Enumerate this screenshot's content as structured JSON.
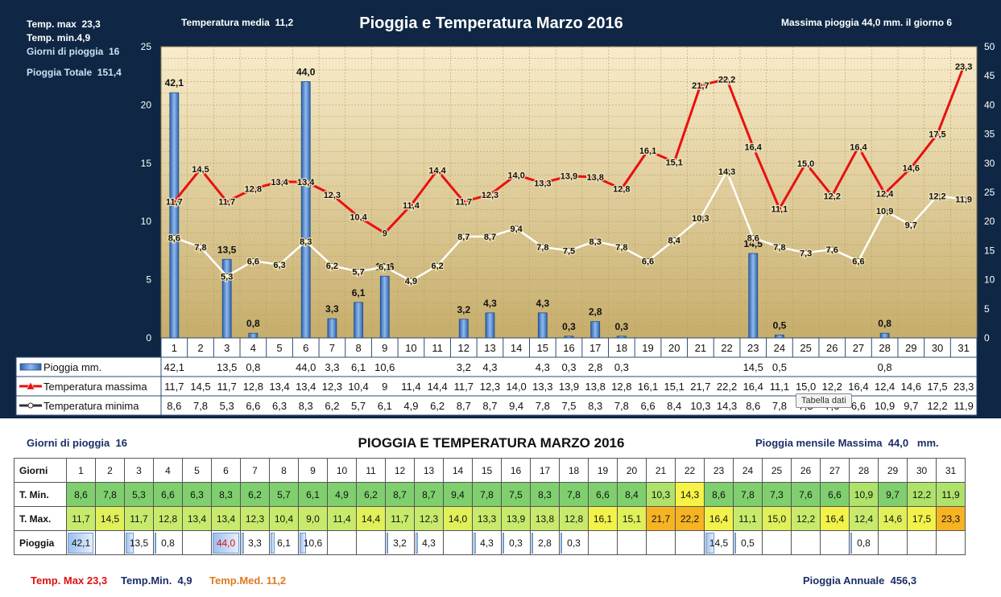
{
  "header": {
    "title": "Pioggia e Temperatura Marzo 2016",
    "temp_max_label": "Temp. max",
    "temp_max_value": "23,3",
    "temp_min_label": "Temp.  min.4,9",
    "rain_days_label": "Giorni di pioggia",
    "rain_days_value": "16",
    "rain_total_label": "Pioggia Totale",
    "rain_total_value": "151,4",
    "temp_media_label": "Temperatura media",
    "temp_media_value": "11,2",
    "max_rain_text": "Massima pioggia 44,0  mm.  il giorno  6"
  },
  "chart_data": {
    "type": "bar+line",
    "x": [
      "1",
      "2",
      "3",
      "4",
      "5",
      "6",
      "7",
      "8",
      "9",
      "10",
      "11",
      "12",
      "13",
      "14",
      "15",
      "16",
      "17",
      "18",
      "19",
      "20",
      "21",
      "22",
      "23",
      "24",
      "25",
      "26",
      "27",
      "28",
      "29",
      "30",
      "31"
    ],
    "series": [
      {
        "name": "Pioggia mm.",
        "type": "bar",
        "axis": "left-scaled",
        "values": [
          42.1,
          null,
          13.5,
          0.8,
          null,
          44.0,
          3.3,
          6.1,
          10.6,
          null,
          null,
          3.2,
          4.3,
          null,
          4.3,
          0.3,
          2.8,
          0.3,
          null,
          null,
          null,
          null,
          14.5,
          0.5,
          null,
          null,
          null,
          0.8,
          null,
          null,
          null
        ],
        "labels": [
          "42,1",
          "",
          "13,5",
          "0,8",
          "",
          "44,0",
          "3,3",
          "6,1",
          "10,6",
          "",
          "",
          "3,2",
          "4,3",
          "",
          "4,3",
          "0,3",
          "2,8",
          "0,3",
          "",
          "",
          "",
          "",
          "14,5",
          "0,5",
          "",
          "",
          "",
          "0,8",
          "",
          "",
          ""
        ]
      },
      {
        "name": "Temperatura massima",
        "type": "line",
        "color": "#e81010",
        "values": [
          11.7,
          14.5,
          11.7,
          12.8,
          13.4,
          13.4,
          12.3,
          10.4,
          9,
          11.4,
          14.4,
          11.7,
          12.3,
          14.0,
          13.3,
          13.9,
          13.8,
          12.8,
          16.1,
          15.1,
          21.7,
          22.2,
          16.4,
          11.1,
          15.0,
          12.2,
          16.4,
          12.4,
          14.6,
          17.5,
          23.3
        ],
        "labels": [
          "11,7",
          "14,5",
          "11,7",
          "12,8",
          "13,4",
          "13,4",
          "12,3",
          "10,4",
          "9",
          "11,4",
          "14,4",
          "11,7",
          "12,3",
          "14,0",
          "13,3",
          "13,9",
          "13,8",
          "12,8",
          "16,1",
          "15,1",
          "21,7",
          "22,2",
          "16,4",
          "11,1",
          "15,0",
          "12,2",
          "16,4",
          "12,4",
          "14,6",
          "17,5",
          "23,3"
        ]
      },
      {
        "name": "Temperatura minima",
        "type": "line",
        "color": "#ffffff",
        "values": [
          8.6,
          7.8,
          5.3,
          6.6,
          6.3,
          8.3,
          6.2,
          5.7,
          6.1,
          4.9,
          6.2,
          8.7,
          8.7,
          9.4,
          7.8,
          7.5,
          8.3,
          7.8,
          6.6,
          8.4,
          10.3,
          14.3,
          8.6,
          7.8,
          7.3,
          7.6,
          6.6,
          10.9,
          9.7,
          12.2,
          11.9
        ],
        "labels": [
          "8,6",
          "7,8",
          "5,3",
          "6,6",
          "6,3",
          "8,3",
          "6,2",
          "5,7",
          "6,1",
          "4,9",
          "6,2",
          "8,7",
          "8,7",
          "9,4",
          "7,8",
          "7,5",
          "8,3",
          "7,8",
          "6,6",
          "8,4",
          "10,3",
          "14,3",
          "8,6",
          "7,8",
          "7,3",
          "7,6",
          "6,6",
          "10,9",
          "9,7",
          "12,2",
          "11,9"
        ]
      }
    ],
    "y_left_ticks": [
      "0",
      "5",
      "10",
      "15",
      "20",
      "25"
    ],
    "y_right_ticks": [
      "0",
      "5",
      "10",
      "15",
      "20",
      "25",
      "30",
      "35",
      "40",
      "45",
      "50"
    ],
    "ylim_left": [
      0,
      25
    ],
    "ylim_right": [
      0,
      50
    ],
    "grid": true,
    "table_rows": [
      {
        "label": "Pioggia mm."
      },
      {
        "label": "Temperatura massima"
      },
      {
        "label": "Temperatura minima"
      }
    ],
    "colors": {
      "bar": "#4f86c9",
      "tmax": "#e81010",
      "tmin": "#ffffff",
      "plot_top": "#f8eccb",
      "plot_bottom": "#c9b070"
    }
  },
  "tooltip": {
    "text": "Tabella dati"
  },
  "bottom": {
    "title": "PIOGGIA E TEMPERATURA MARZO 2016",
    "rain_days_label": "Giorni di pioggia",
    "rain_days_value": "16",
    "monthly_max_label": "Pioggia mensile Massima",
    "monthly_max_value": "44,0",
    "monthly_max_unit": "mm.",
    "row_headers": {
      "days": "Giorni",
      "tmin": "T. Min.",
      "tmax": "T. Max.",
      "rain": "Pioggia"
    },
    "tmin_values": [
      "8,6",
      "7,8",
      "5,3",
      "6,6",
      "6,3",
      "8,3",
      "6,2",
      "5,7",
      "6,1",
      "4,9",
      "6,2",
      "8,7",
      "8,7",
      "9,4",
      "7,8",
      "7,5",
      "8,3",
      "7,8",
      "6,6",
      "8,4",
      "10,3",
      "14,3",
      "8,6",
      "7,8",
      "7,3",
      "7,6",
      "6,6",
      "10,9",
      "9,7",
      "12,2",
      "11,9"
    ],
    "tmax_values": [
      "11,7",
      "14,5",
      "11,7",
      "12,8",
      "13,4",
      "13,4",
      "12,3",
      "10,4",
      "9,0",
      "11,4",
      "14,4",
      "11,7",
      "12,3",
      "14,0",
      "13,3",
      "13,9",
      "13,8",
      "12,8",
      "16,1",
      "15,1",
      "21,7",
      "22,2",
      "16,4",
      "11,1",
      "15,0",
      "12,2",
      "16,4",
      "12,4",
      "14,6",
      "17,5",
      "23,3"
    ],
    "rain_values": [
      "42,1",
      "",
      "13,5",
      "0,8",
      "",
      "44,0",
      "3,3",
      "6,1",
      "10,6",
      "",
      "",
      "3,2",
      "4,3",
      "",
      "4,3",
      "0,3",
      "2,8",
      "0,3",
      "",
      "",
      "",
      "",
      "14,5",
      "0,5",
      "",
      "",
      "",
      "0,8",
      "",
      "",
      ""
    ],
    "footer_temp_max_label": "Temp. Max",
    "footer_temp_max_value": "23,3",
    "footer_temp_min_label": "Temp.Min.",
    "footer_temp_min_value": "4,9",
    "footer_temp_med_label": "Temp.Med.",
    "footer_temp_med_value": "11,2",
    "footer_annual_label": "Pioggia Annuale",
    "footer_annual_value": "456,3"
  }
}
